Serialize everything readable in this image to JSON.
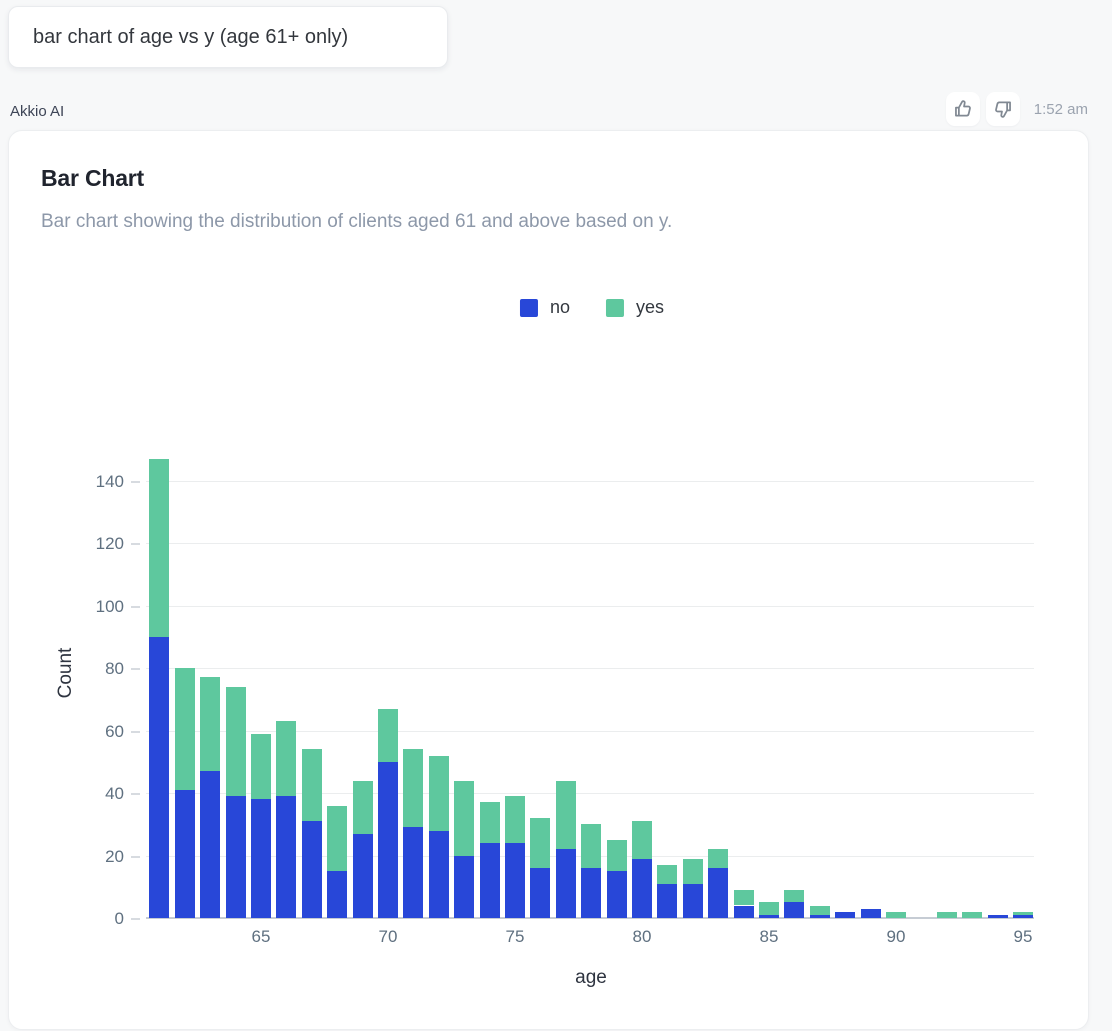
{
  "user_message": {
    "text": "bar chart of age vs y (age 61+ only)"
  },
  "response": {
    "sender": "Akkio AI",
    "timestamp": "1:52 am",
    "actions": {
      "thumbs_up": "thumbs-up",
      "thumbs_down": "thumbs-down"
    }
  },
  "chart_data": {
    "type": "bar",
    "stacked": true,
    "title": "Bar Chart",
    "subtitle": "Bar chart showing the distribution of clients aged 61 and above based on y.",
    "xlabel": "age",
    "ylabel": "Count",
    "x": [
      61,
      62,
      63,
      64,
      65,
      66,
      67,
      68,
      69,
      70,
      71,
      72,
      73,
      74,
      75,
      76,
      77,
      78,
      79,
      80,
      81,
      82,
      83,
      84,
      85,
      86,
      87,
      88,
      89,
      90,
      91,
      92,
      93,
      94,
      95
    ],
    "series": [
      {
        "name": "no",
        "color": "#2847d8",
        "values": [
          90,
          41,
          47,
          39,
          38,
          39,
          31,
          15,
          27,
          50,
          29,
          28,
          20,
          24,
          24,
          16,
          22,
          16,
          15,
          19,
          11,
          11,
          16,
          4,
          1,
          5,
          1,
          2,
          3,
          0,
          0,
          0,
          0,
          1,
          1
        ]
      },
      {
        "name": "yes",
        "color": "#5ec89e",
        "values": [
          57,
          39,
          30,
          35,
          21,
          24,
          23,
          21,
          17,
          17,
          25,
          24,
          24,
          13,
          15,
          16,
          22,
          14,
          10,
          12,
          6,
          8,
          6,
          5,
          4,
          4,
          3,
          0,
          0,
          2,
          0,
          2,
          2,
          0,
          1
        ]
      }
    ],
    "y_ticks": [
      0,
      20,
      40,
      60,
      80,
      100,
      120,
      140
    ],
    "x_ticks": [
      65,
      70,
      75,
      80,
      85,
      90,
      95
    ],
    "ylim": [
      0,
      150
    ],
    "grid": true,
    "legend_position": "top-center",
    "colors": {
      "grid": "#ebedee",
      "axis": "#c6ccd4",
      "tick_text": "#5f7080"
    }
  }
}
